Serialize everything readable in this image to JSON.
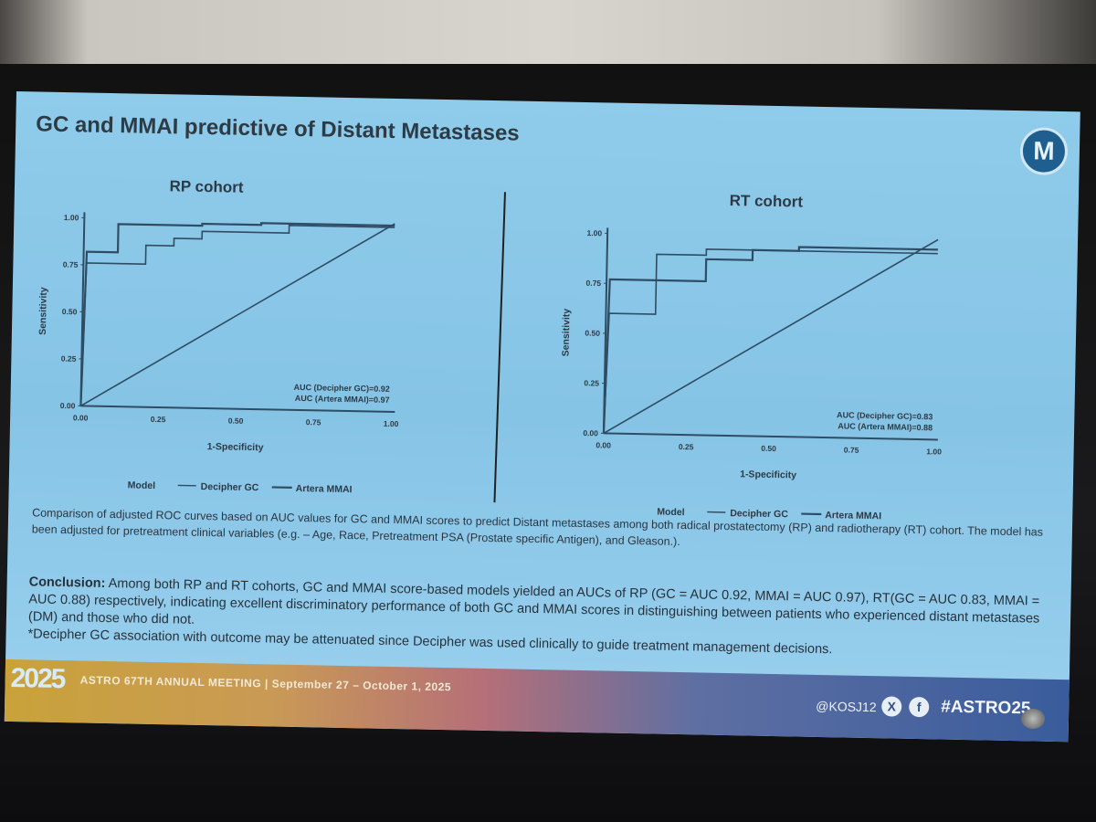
{
  "slide": {
    "title": "GC and MMAI predictive of Distant Metastases",
    "logo_letter": "M",
    "caption": "Comparison of adjusted ROC curves based on AUC values for GC and MMAI scores to predict Distant metastases among both radical prostatectomy (RP) and radiotherapy (RT) cohort. The model has been adjusted for pretreatment clinical variables (e.g. – Age, Race, Pretreatment PSA (Prostate specific Antigen), and Gleason.).",
    "conclusion_label": "Conclusion:",
    "conclusion_text": " Among both RP and RT cohorts, GC and MMAI score-based models yielded an AUCs of RP (GC = AUC 0.92, MMAI = AUC 0.97), RT(GC = AUC 0.83, MMAI = AUC 0.88) respectively, indicating excellent discriminatory performance of both GC and MMAI scores in distinguishing between patients who experienced distant metastases (DM) and those who did not.",
    "footnote": "*Decipher GC association with outcome may be attenuated since Decipher was used clinically to guide treatment management decisions."
  },
  "footer": {
    "year_logo": "2025",
    "meeting": "ASTRO 67TH ANNUAL MEETING  |  September 27 – October 1, 2025",
    "handle": "@KOSJ12",
    "x_icon": "X",
    "fb_icon": "f",
    "hashtag": "#ASTRO25"
  },
  "colors": {
    "line": "#2e4c63",
    "text": "#2d3a45"
  },
  "chart_data": [
    {
      "type": "line",
      "title": "RP cohort",
      "xlabel": "1-Specificity",
      "ylabel": "Sensitivity",
      "xlim": [
        0,
        1
      ],
      "ylim": [
        0,
        1
      ],
      "xticks": [
        "0.00",
        "0.25",
        "0.50",
        "0.75",
        "1.00"
      ],
      "yticks": [
        "0.00",
        "0.25",
        "0.50",
        "0.75",
        "1.00"
      ],
      "legend_title": "Model",
      "legend_position": "bottom",
      "annotations": [
        "AUC (Decipher GC)=0.92",
        "AUC (Artera MMAI)=0.97"
      ],
      "series": [
        {
          "name": "Decipher GC",
          "x": [
            0,
            0.01,
            0.2,
            0.2,
            0.29,
            0.29,
            0.38,
            0.38,
            0.66,
            0.66,
            1
          ],
          "y": [
            0,
            0.76,
            0.76,
            0.86,
            0.86,
            0.9,
            0.9,
            0.94,
            0.94,
            0.98,
            0.98
          ]
        },
        {
          "name": "Artera MMAI",
          "x": [
            0,
            0.01,
            0.11,
            0.11,
            0.38,
            0.38,
            0.57,
            0.57,
            1
          ],
          "y": [
            0,
            0.82,
            0.82,
            0.97,
            0.97,
            0.98,
            0.98,
            0.99,
            0.99
          ]
        },
        {
          "name": "reference",
          "x": [
            0,
            1
          ],
          "y": [
            0,
            1
          ]
        }
      ]
    },
    {
      "type": "line",
      "title": "RT cohort",
      "xlabel": "1-Specificity",
      "ylabel": "Sensitivity",
      "xlim": [
        0,
        1
      ],
      "ylim": [
        0,
        1
      ],
      "xticks": [
        "0.00",
        "0.25",
        "0.50",
        "0.75",
        "1.00"
      ],
      "yticks": [
        "0.00",
        "0.25",
        "0.50",
        "0.75",
        "1.00"
      ],
      "legend_title": "Model",
      "legend_position": "bottom",
      "annotations": [
        "AUC (Decipher GC)=0.83",
        "AUC (Artera MMAI)=0.88"
      ],
      "series": [
        {
          "name": "Decipher GC",
          "x": [
            0,
            0.01,
            0.15,
            0.15,
            0.3,
            0.3,
            1
          ],
          "y": [
            0,
            0.6,
            0.6,
            0.9,
            0.9,
            0.93,
            0.93
          ]
        },
        {
          "name": "Artera MMAI",
          "x": [
            0,
            0.01,
            0.3,
            0.3,
            0.44,
            0.44,
            0.58,
            0.58,
            1
          ],
          "y": [
            0,
            0.77,
            0.77,
            0.88,
            0.88,
            0.93,
            0.93,
            0.95,
            0.95
          ]
        },
        {
          "name": "reference",
          "x": [
            0,
            1
          ],
          "y": [
            0,
            1
          ]
        }
      ]
    }
  ]
}
